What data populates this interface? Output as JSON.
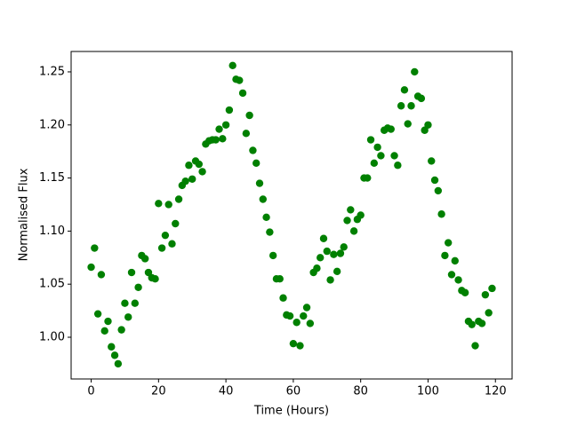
{
  "chart_data": {
    "type": "scatter",
    "xlabel": "Time (Hours)",
    "ylabel": "Normalised Flux",
    "color": "#008000",
    "x": [
      0,
      1,
      2,
      3,
      4,
      5,
      6,
      7,
      8,
      9,
      10,
      11,
      12,
      13,
      14,
      15,
      16,
      17,
      18,
      19,
      20,
      21,
      22,
      23,
      24,
      25,
      26,
      27,
      28,
      29,
      30,
      31,
      32,
      33,
      34,
      35,
      36,
      37,
      38,
      39,
      40,
      41,
      42,
      43,
      44,
      45,
      46,
      47,
      48,
      49,
      50,
      51,
      52,
      53,
      54,
      55,
      56,
      57,
      58,
      59,
      60,
      61,
      62,
      63,
      64,
      65,
      66,
      67,
      68,
      69,
      70,
      71,
      72,
      73,
      74,
      75,
      76,
      77,
      78,
      79,
      80,
      81,
      82,
      83,
      84,
      85,
      86,
      87,
      88,
      89,
      90,
      91,
      92,
      93,
      94,
      95,
      96,
      97,
      98,
      99,
      100,
      101,
      102,
      103,
      104,
      105,
      106,
      107,
      108,
      109,
      110,
      111,
      112,
      113,
      114,
      115,
      116,
      117,
      118,
      119
    ],
    "values": [
      1.066,
      1.084,
      1.022,
      1.059,
      1.006,
      1.015,
      0.991,
      0.983,
      0.975,
      1.007,
      1.032,
      1.019,
      1.061,
      1.032,
      1.047,
      1.077,
      1.074,
      1.061,
      1.056,
      1.055,
      1.126,
      1.084,
      1.096,
      1.125,
      1.088,
      1.107,
      1.13,
      1.143,
      1.147,
      1.162,
      1.149,
      1.166,
      1.163,
      1.156,
      1.182,
      1.185,
      1.186,
      1.186,
      1.196,
      1.187,
      1.2,
      1.214,
      1.256,
      1.243,
      1.242,
      1.23,
      1.192,
      1.209,
      1.176,
      1.164,
      1.145,
      1.13,
      1.113,
      1.099,
      1.077,
      1.055,
      1.055,
      1.037,
      1.021,
      1.02,
      0.994,
      1.014,
      0.992,
      1.02,
      1.028,
      1.013,
      1.061,
      1.065,
      1.075,
      1.093,
      1.081,
      1.054,
      1.078,
      1.062,
      1.079,
      1.085,
      1.11,
      1.12,
      1.1,
      1.111,
      1.115,
      1.15,
      1.15,
      1.186,
      1.164,
      1.179,
      1.171,
      1.195,
      1.197,
      1.196,
      1.171,
      1.162,
      1.218,
      1.233,
      1.201,
      1.218,
      1.25,
      1.227,
      1.225,
      1.195,
      1.2,
      1.166,
      1.148,
      1.138,
      1.116,
      1.077,
      1.089,
      1.059,
      1.072,
      1.054,
      1.044,
      1.042,
      1.015,
      1.012,
      0.992,
      1.015,
      1.013,
      1.04,
      1.023,
      1.046
    ],
    "xlim": [
      -5.95,
      124.95
    ],
    "xticks": [
      0,
      20,
      40,
      60,
      80,
      100,
      120
    ],
    "ylim": [
      0.9607,
      1.2692
    ],
    "yticks": [
      {
        "value": 1.0,
        "label": "1.00"
      },
      {
        "value": 1.05,
        "label": "1.05"
      },
      {
        "value": 1.1,
        "label": "1.10"
      },
      {
        "value": 1.15,
        "label": "1.15"
      },
      {
        "value": 1.2,
        "label": "1.20"
      },
      {
        "value": 1.25,
        "label": "1.25"
      }
    ]
  }
}
